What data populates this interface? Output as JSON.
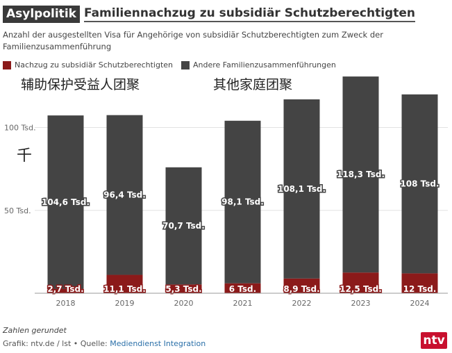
{
  "header": {
    "tag": "Asylpolitik",
    "title": "Familiennachzug zu subsidiär Schutzberechtigten",
    "subtitle": "Anzahl der ausgestellten Visa für Angehörige von subsidiär Schutzberechtigten zum Zweck der Familienzusammenführung"
  },
  "overlays": {
    "left": "辅助保护受益人团聚",
    "right": "其他家庭团聚",
    "unit": "千"
  },
  "chart_data": {
    "type": "bar",
    "stacked": true,
    "categories": [
      "2018",
      "2019",
      "2020",
      "2021",
      "2022",
      "2023",
      "2024"
    ],
    "series": [
      {
        "name": "Nachzug zu subsidiär Schutzberechtigten",
        "color": "#8b1a1a",
        "values": [
          2.7,
          11.1,
          5.3,
          6,
          8.9,
          12.5,
          12
        ],
        "labels": [
          "2,7 Tsd.",
          "11,1 Tsd.",
          "5,3 Tsd.",
          "6 Tsd.",
          "8,9 Tsd.",
          "12,5 Tsd.",
          "12 Tsd."
        ]
      },
      {
        "name": "Andere Familienzusammenführungen",
        "color": "#444444",
        "values": [
          104.6,
          96.4,
          70.7,
          98.1,
          108.1,
          118.3,
          108
        ],
        "labels": [
          "104,6 Tsd.",
          "96,4 Tsd.",
          "70,7 Tsd.",
          "98,1 Tsd.",
          "108,1 Tsd.",
          "118,3 Tsd.",
          "108 Tsd."
        ]
      }
    ],
    "yticks": [
      50,
      100
    ],
    "ytick_labels": [
      "50 Tsd.",
      "100 Tsd."
    ],
    "ylim": [
      0,
      130
    ],
    "grid": true
  },
  "footer": {
    "note": "Zahlen gerundet",
    "credit_prefix": "Grafik: ntv.de / lst • Quelle: ",
    "credit_source": "Mediendienst Integration",
    "logo": "ntv"
  }
}
